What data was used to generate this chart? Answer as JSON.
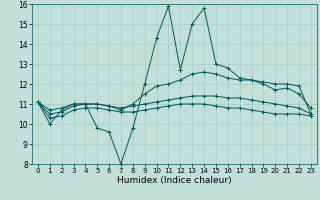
{
  "xlabel": "Humidex (Indice chaleur)",
  "background_color": "#c2e0d8",
  "grid_color": "#a0ccc4",
  "line_color": "#005858",
  "xlim": [
    -0.5,
    23.5
  ],
  "ylim": [
    8,
    16
  ],
  "xticks": [
    0,
    1,
    2,
    3,
    4,
    5,
    6,
    7,
    8,
    9,
    10,
    11,
    12,
    13,
    14,
    15,
    16,
    17,
    18,
    19,
    20,
    21,
    22,
    23
  ],
  "yticks": [
    8,
    9,
    10,
    11,
    12,
    13,
    14,
    15,
    16
  ],
  "series": [
    [
      11.1,
      10.0,
      10.7,
      11.0,
      11.0,
      9.8,
      9.6,
      8.0,
      9.8,
      12.0,
      14.3,
      15.9,
      12.7,
      15.0,
      15.8,
      13.0,
      12.8,
      12.3,
      12.2,
      12.0,
      11.7,
      11.8,
      11.5,
      10.8
    ],
    [
      11.1,
      10.7,
      10.8,
      11.0,
      11.0,
      11.0,
      10.9,
      10.7,
      11.0,
      11.5,
      11.9,
      12.0,
      12.2,
      12.5,
      12.6,
      12.5,
      12.3,
      12.2,
      12.2,
      12.1,
      12.0,
      12.0,
      11.9,
      10.5
    ],
    [
      11.1,
      10.5,
      10.6,
      10.9,
      11.0,
      11.0,
      10.9,
      10.8,
      10.9,
      11.0,
      11.1,
      11.2,
      11.3,
      11.4,
      11.4,
      11.4,
      11.3,
      11.3,
      11.2,
      11.1,
      11.0,
      10.9,
      10.8,
      10.5
    ],
    [
      11.1,
      10.3,
      10.4,
      10.7,
      10.8,
      10.8,
      10.7,
      10.6,
      10.6,
      10.7,
      10.8,
      10.9,
      11.0,
      11.0,
      11.0,
      10.9,
      10.8,
      10.8,
      10.7,
      10.6,
      10.5,
      10.5,
      10.5,
      10.4
    ]
  ]
}
